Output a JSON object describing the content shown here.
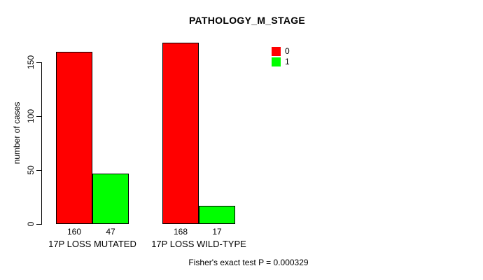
{
  "chart_data": {
    "type": "bar",
    "title": "PATHOLOGY_M_STAGE",
    "ylabel": "number of cases",
    "xlabel": "",
    "categories": [
      "17P LOSS MUTATED",
      "17P LOSS WILD-TYPE"
    ],
    "series": [
      {
        "name": "0",
        "color": "#ff0000",
        "values": [
          160,
          168
        ]
      },
      {
        "name": "1",
        "color": "#00ff00",
        "values": [
          47,
          17
        ]
      }
    ],
    "bar_value_labels": [
      [
        160,
        47
      ],
      [
        168,
        17
      ]
    ],
    "yticks": [
      0,
      50,
      100,
      150
    ],
    "ylim": [
      0,
      168
    ],
    "grid": false,
    "legend_position": "top-right",
    "bar_border_color": "#000000",
    "axis_color": "#000000",
    "footer": "Fisher's exact test P = 0.000329"
  }
}
